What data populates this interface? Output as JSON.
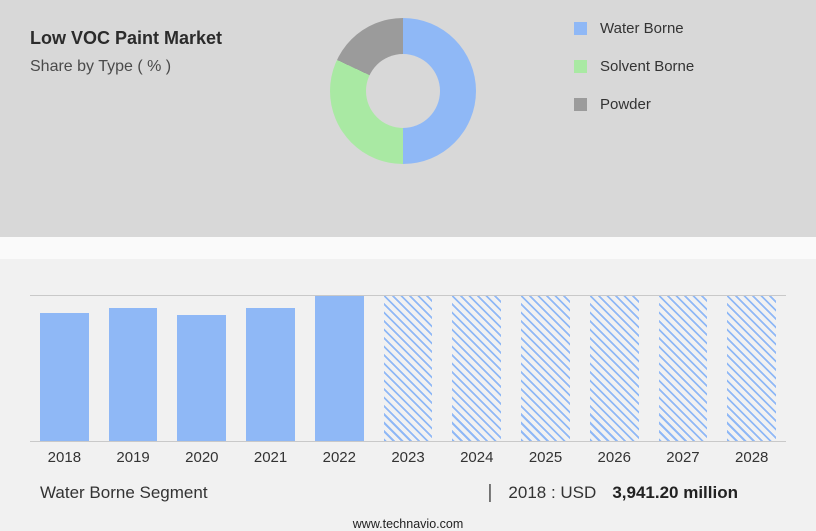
{
  "header": {
    "title": "Low VOC Paint Market",
    "subtitle": "Share by Type ( % )"
  },
  "colors": {
    "water_borne_blue": "#8FB8F6",
    "solvent_borne_green": "#A9E9A3",
    "powder_gray": "#9B9B9B",
    "top_panel_bg": "#d8d8d8"
  },
  "chart_data": [
    {
      "type": "pie",
      "donut": true,
      "title": "Share by Type ( % )",
      "legend_position": "right",
      "segments": [
        {
          "label": "Water Borne",
          "value": 50,
          "color": "#8FB8F6"
        },
        {
          "label": "Solvent Borne",
          "value": 32,
          "color": "#A9E9A3"
        },
        {
          "label": "Powder",
          "value": 18,
          "color": "#9B9B9B"
        }
      ]
    },
    {
      "type": "bar",
      "categories": [
        "2018",
        "2019",
        "2020",
        "2021",
        "2022",
        "2023",
        "2024",
        "2025",
        "2026",
        "2027",
        "2028"
      ],
      "relative_heights": [
        0.88,
        0.92,
        0.87,
        0.92,
        1.0,
        1.0,
        1.0,
        1.0,
        1.0,
        1.0,
        1.0
      ],
      "styles": [
        "solid",
        "solid",
        "solid",
        "solid",
        "solid",
        "hatched",
        "hatched",
        "hatched",
        "hatched",
        "hatched",
        "hatched"
      ],
      "bar_color": "#8FB8F6",
      "known_values": {
        "2018": "USD 3,941.20 million"
      },
      "xlabel": "",
      "ylabel": "",
      "grid": "top-and-baseline",
      "note": "2023-2028 are forecast bars shown hatched"
    }
  ],
  "footer": {
    "segment_label": "Water Borne Segment",
    "separator": "|",
    "value_prefix": "2018 : USD",
    "value_bold": "3,941.20 million",
    "website": "www.technavio.com"
  }
}
